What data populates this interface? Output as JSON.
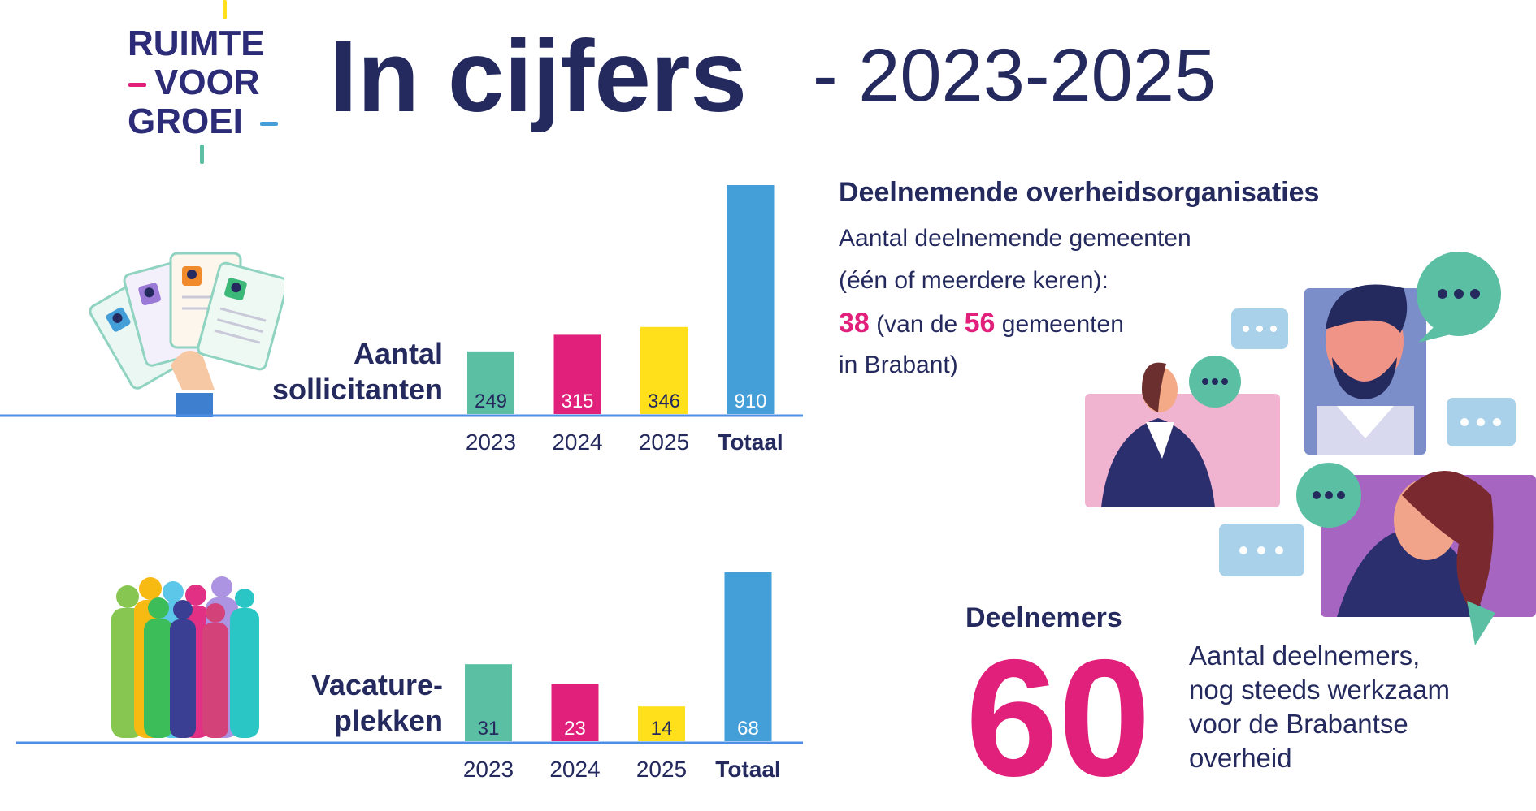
{
  "logo": {
    "line1": "RUIMTE",
    "line2": "VOOR",
    "line3": "GROEI"
  },
  "header": {
    "title": "In cijfers",
    "subtitle": "- 2023-2025"
  },
  "chart_data": [
    {
      "type": "bar",
      "label": "Aantal sollicitanten",
      "label_line1": "Aantal",
      "label_line2": "sollicitanten",
      "categories": [
        "2023",
        "2024",
        "2025",
        "Totaal"
      ],
      "values": [
        249,
        315,
        346,
        910
      ],
      "value_labels": [
        "249",
        "315",
        "346",
        "910"
      ],
      "colors": [
        "#5bbfa3",
        "#e0207a",
        "#ffe01a",
        "#449fd9"
      ],
      "ylim": [
        0,
        910
      ],
      "grid": false
    },
    {
      "type": "bar",
      "label": "Vacature-plekken",
      "label_line1": "Vacature-",
      "label_line2": "plekken",
      "categories": [
        "2023",
        "2024",
        "2025",
        "Totaal"
      ],
      "values": [
        31,
        23,
        14,
        68
      ],
      "value_labels": [
        "31",
        "23",
        "14",
        "68"
      ],
      "colors": [
        "#5bbfa3",
        "#e0207a",
        "#ffe01a",
        "#449fd9"
      ],
      "ylim": [
        0,
        68
      ],
      "grid": false
    }
  ],
  "organisations": {
    "heading": "Deelnemende overheidsorganisaties",
    "line1": "Aantal deelnemende gemeenten",
    "line2": "(één of meerdere keren):",
    "count": "38",
    "text_a": "(van de",
    "total": "56",
    "text_b": "gemeenten",
    "line4": "in Brabant)"
  },
  "participants": {
    "heading": "Deelnemers",
    "count": "60",
    "desc1": "Aantal deelnemers,",
    "desc2": "nog steeds werkzaam",
    "desc3": "voor de Brabantse",
    "desc4": "overheid"
  },
  "colors": {
    "navy": "#252a5e",
    "pink": "#e0207a",
    "teal": "#5bbfa3",
    "yellow": "#ffe01a",
    "blue": "#449fd9"
  },
  "icons": [
    "cv-cards-illustration",
    "people-silhouettes-illustration",
    "video-call-illustration"
  ]
}
